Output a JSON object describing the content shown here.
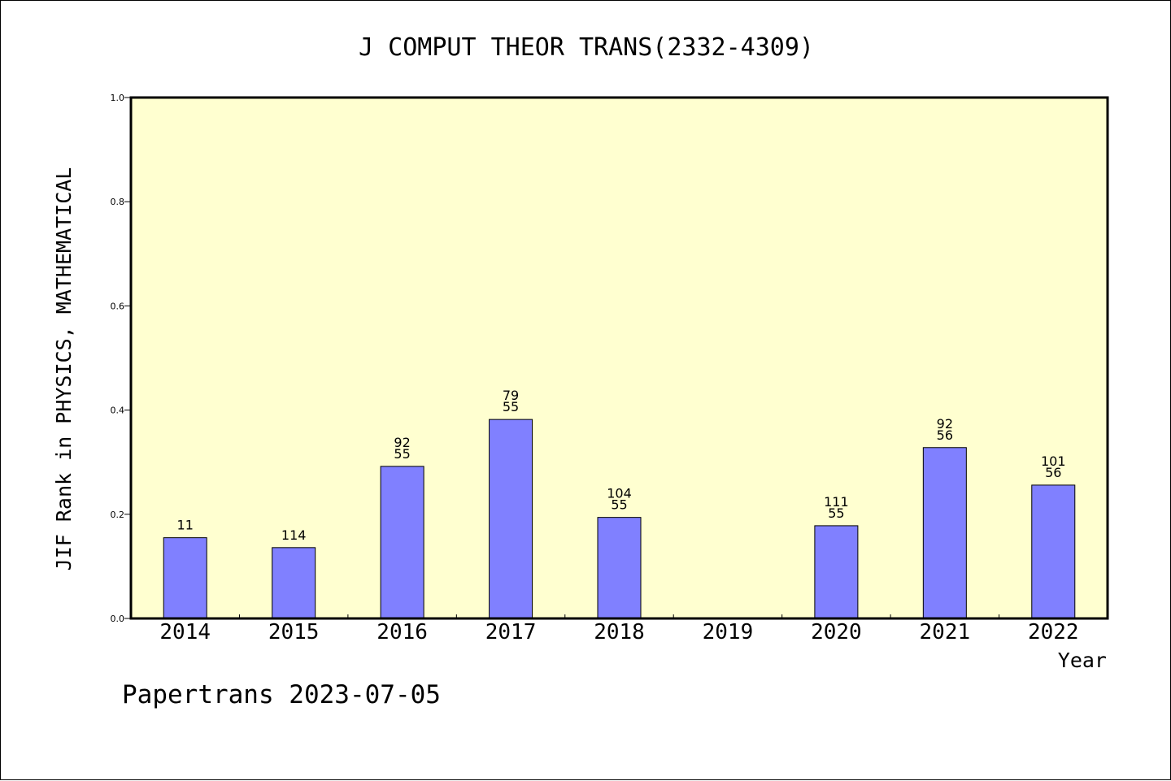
{
  "chart_data": {
    "type": "bar",
    "title": "J COMPUT THEOR TRANS(2332-4309)",
    "xlabel": "Year",
    "ylabel": "JIF Rank in PHYSICS, MATHEMATICAL",
    "ylim": [
      0.0,
      1.0
    ],
    "y_ticks": [
      "0.0",
      "0.2",
      "0.4",
      "0.6",
      "0.8",
      "1.0"
    ],
    "grid": false,
    "legend": "none",
    "categories": [
      "2014",
      "2015",
      "2016",
      "2017",
      "2018",
      "2019",
      "2020",
      "2021",
      "2022"
    ],
    "values": [
      0.155,
      0.136,
      0.292,
      0.382,
      0.194,
      null,
      0.178,
      0.328,
      0.256
    ],
    "labels": [
      [
        "11"
      ],
      [
        "114"
      ],
      [
        "92",
        "55"
      ],
      [
        "79",
        "55"
      ],
      [
        "104",
        "55"
      ],
      [],
      [
        "111",
        "55"
      ],
      [
        "92",
        "56"
      ],
      [
        "101",
        "56"
      ]
    ],
    "colors": {
      "plot_background": "#ffffd0",
      "bar_fill": "#8080ff",
      "bar_stroke": "#000000",
      "axis": "#000000"
    }
  },
  "footer": {
    "credit": "Papertrans 2023-07-05"
  }
}
